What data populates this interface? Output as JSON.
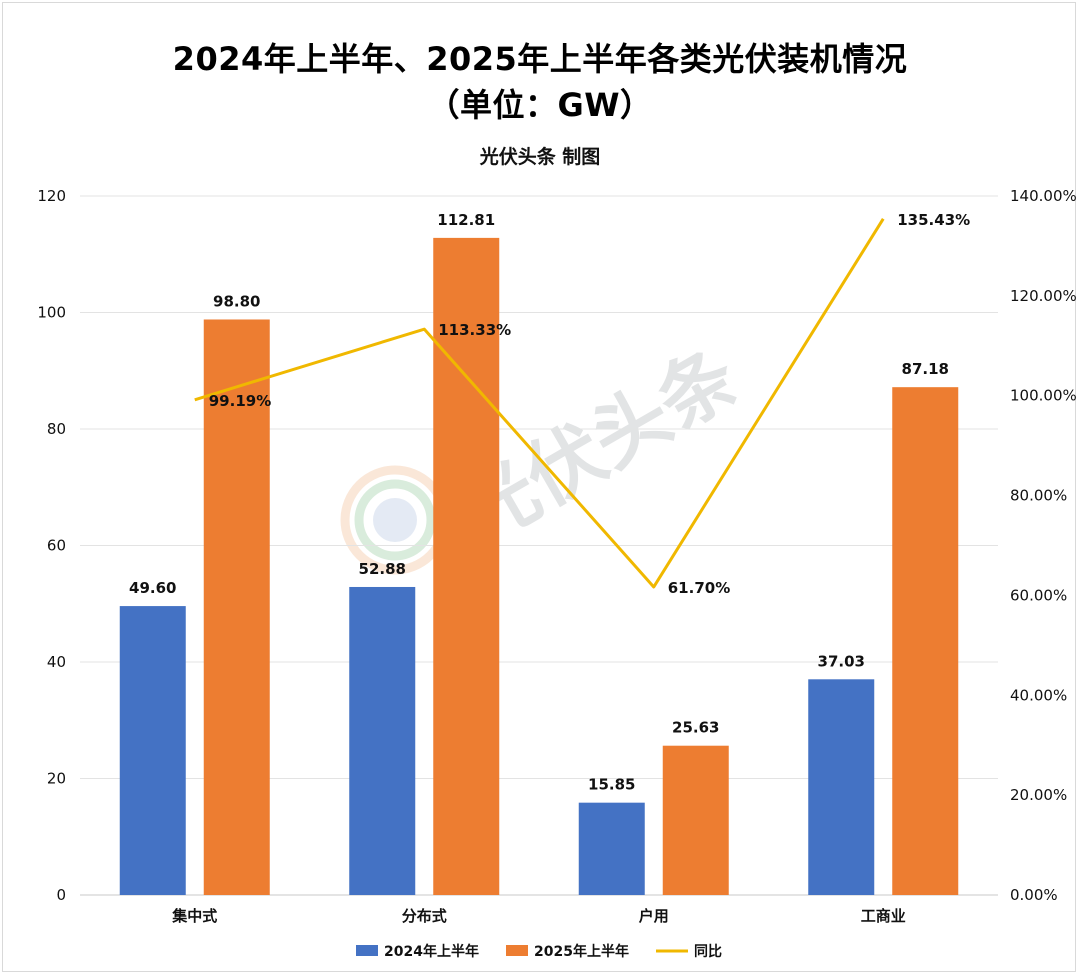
{
  "title_line1": "2024年上半年、2025年上半年各类光伏装机情况",
  "title_line2": "（单位：GW）",
  "subtitle": "光伏头条 制图",
  "watermark": "光伏头条",
  "colors": {
    "series_2024": "#4472c4",
    "series_2025": "#ed7d31",
    "line_yoy": "#f0b800",
    "grid": "#e3e3e3",
    "axis": "#c8c8c8"
  },
  "chart_data": {
    "type": "bar+line",
    "categories": [
      "集中式",
      "分布式",
      "户用",
      "工商业"
    ],
    "series": [
      {
        "name": "2024年上半年",
        "type": "bar",
        "axis": "left",
        "values": [
          49.6,
          52.88,
          15.85,
          37.03
        ],
        "labels": [
          "49.60",
          "52.88",
          "15.85",
          "37.03"
        ]
      },
      {
        "name": "2025年上半年",
        "type": "bar",
        "axis": "left",
        "values": [
          98.8,
          112.81,
          25.63,
          87.18
        ],
        "labels": [
          "98.80",
          "112.81",
          "25.63",
          "87.18"
        ]
      },
      {
        "name": "同比",
        "type": "line",
        "axis": "right",
        "values": [
          99.19,
          113.33,
          61.7,
          135.43
        ],
        "labels": [
          "99.19%",
          "113.33%",
          "61.70%",
          "135.43%"
        ]
      }
    ],
    "left_axis": {
      "min": 0,
      "max": 120,
      "ticks": [
        "0",
        "20",
        "40",
        "60",
        "80",
        "100",
        "120"
      ]
    },
    "right_axis": {
      "min": 0,
      "max": 140,
      "ticks": [
        "0.00%",
        "20.00%",
        "40.00%",
        "60.00%",
        "80.00%",
        "100.00%",
        "120.00%",
        "140.00%"
      ]
    },
    "grid": true,
    "legend": "bottom"
  }
}
